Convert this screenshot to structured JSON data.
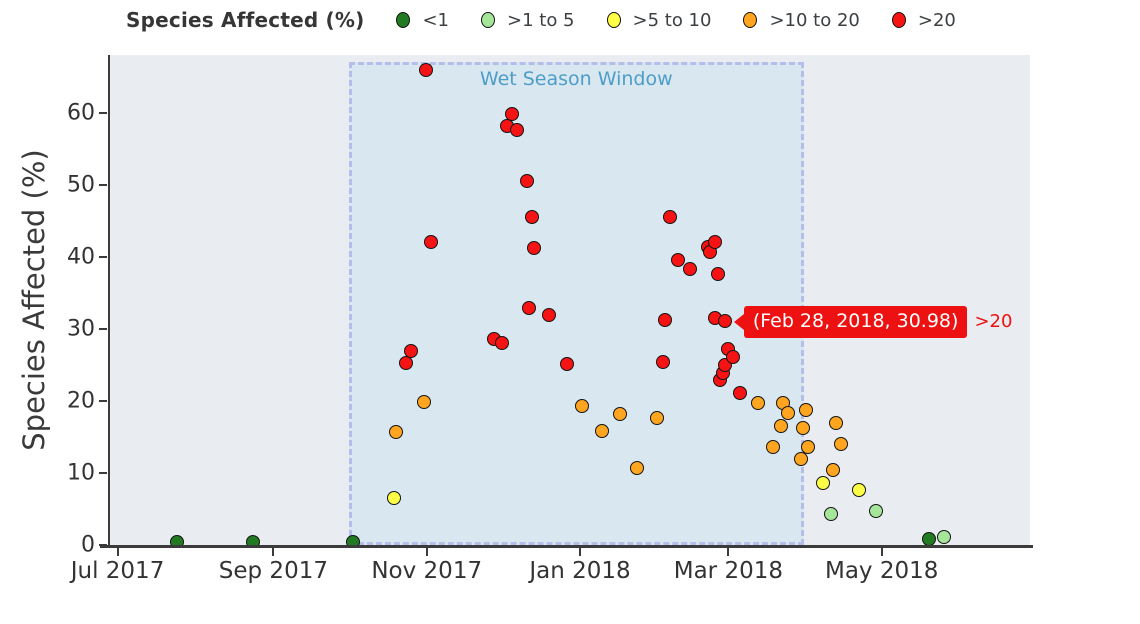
{
  "legend": {
    "title": "Species Affected (%)",
    "items": [
      {
        "key": "lt1",
        "label": "<1",
        "color": "#227a22"
      },
      {
        "key": "1to5",
        "label": ">1 to 5",
        "color": "#a6e69b"
      },
      {
        "key": "5to10",
        "label": ">5 to 10",
        "color": "#ffff45"
      },
      {
        "key": "10to20",
        "label": ">10 to 20",
        "color": "#ffa51f"
      },
      {
        "key": "gt20",
        "label": ">20",
        "color": "#f51313"
      }
    ]
  },
  "colors": {
    "plot_background": "#e9edf2",
    "wet_window_background": "#d9e7f1",
    "wet_window_border": "#b5bdea",
    "wet_window_label": "#4d9ec6",
    "axis": "#3b3b3b",
    "tooltip_background": "#ee1111",
    "tooltip_text": "#ffffff"
  },
  "chart_data": {
    "type": "scatter",
    "title": "",
    "xlabel": "",
    "ylabel": "Species Affected (%)",
    "ylim": [
      0,
      68
    ],
    "grid": false,
    "legend_position": "top",
    "x_domain": [
      "2017-06-28",
      "2018-06-29"
    ],
    "y_ticks": [
      0,
      10,
      20,
      30,
      40,
      50,
      60
    ],
    "x_ticks": [
      {
        "date": "2017-07-01",
        "label": "Jul 2017"
      },
      {
        "date": "2017-09-01",
        "label": "Sep 2017"
      },
      {
        "date": "2017-11-01",
        "label": "Nov 2017"
      },
      {
        "date": "2018-01-01",
        "label": "Jan 2018"
      },
      {
        "date": "2018-03-01",
        "label": "Mar 2018"
      },
      {
        "date": "2018-05-01",
        "label": "May 2018"
      }
    ],
    "annotation_region": {
      "label": "Wet Season Window",
      "start": "2017-10-01",
      "end": "2018-03-31"
    },
    "tooltip": {
      "text": "(Feb 28, 2018, 30.98)",
      "suffix": ">20",
      "point": {
        "date": "2018-02-28",
        "value": 30.98
      }
    },
    "series": [
      {
        "name": "<1",
        "key": "lt1",
        "color": "#227a22",
        "points": [
          {
            "date": "2017-07-25",
            "value": 0.3
          },
          {
            "date": "2017-08-24",
            "value": 0.3
          },
          {
            "date": "2017-10-03",
            "value": 0.3
          },
          {
            "date": "2018-05-20",
            "value": 0.8
          }
        ]
      },
      {
        "name": ">1 to 5",
        "key": "1to5",
        "color": "#a6e69b",
        "points": [
          {
            "date": "2018-04-11",
            "value": 4.3
          },
          {
            "date": "2018-04-29",
            "value": 4.6
          },
          {
            "date": "2018-05-26",
            "value": 1.1
          }
        ]
      },
      {
        "name": ">5 to 10",
        "key": "5to10",
        "color": "#ffff45",
        "points": [
          {
            "date": "2017-10-19",
            "value": 6.5
          },
          {
            "date": "2018-04-08",
            "value": 8.5
          },
          {
            "date": "2018-04-22",
            "value": 7.5
          }
        ]
      },
      {
        "name": ">10 to 20",
        "key": "10to20",
        "color": "#ffa51f",
        "points": [
          {
            "date": "2017-10-20",
            "value": 15.6
          },
          {
            "date": "2017-10-31",
            "value": 19.8
          },
          {
            "date": "2018-01-02",
            "value": 19.2
          },
          {
            "date": "2018-01-10",
            "value": 15.7
          },
          {
            "date": "2018-01-17",
            "value": 18.1
          },
          {
            "date": "2018-01-24",
            "value": 10.6
          },
          {
            "date": "2018-02-01",
            "value": 17.5
          },
          {
            "date": "2018-03-13",
            "value": 19.6
          },
          {
            "date": "2018-03-19",
            "value": 13.5
          },
          {
            "date": "2018-03-22",
            "value": 16.5
          },
          {
            "date": "2018-03-23",
            "value": 19.6
          },
          {
            "date": "2018-03-25",
            "value": 18.2
          },
          {
            "date": "2018-03-30",
            "value": 11.8
          },
          {
            "date": "2018-03-31",
            "value": 16.2
          },
          {
            "date": "2018-04-01",
            "value": 18.6
          },
          {
            "date": "2018-04-02",
            "value": 13.5
          },
          {
            "date": "2018-04-12",
            "value": 10.3
          },
          {
            "date": "2018-04-13",
            "value": 16.8
          },
          {
            "date": "2018-04-15",
            "value": 14.0
          }
        ]
      },
      {
        "name": ">20",
        "key": "gt20",
        "color": "#f51313",
        "points": [
          {
            "date": "2017-10-24",
            "value": 25.2
          },
          {
            "date": "2017-10-26",
            "value": 26.9
          },
          {
            "date": "2017-11-01",
            "value": 65.9
          },
          {
            "date": "2017-11-03",
            "value": 42.0
          },
          {
            "date": "2017-11-28",
            "value": 28.5
          },
          {
            "date": "2017-12-01",
            "value": 28.0
          },
          {
            "date": "2017-12-03",
            "value": 58.1
          },
          {
            "date": "2017-12-05",
            "value": 59.8
          },
          {
            "date": "2017-12-07",
            "value": 57.5
          },
          {
            "date": "2017-12-11",
            "value": 50.4
          },
          {
            "date": "2017-12-12",
            "value": 32.8
          },
          {
            "date": "2017-12-13",
            "value": 45.5
          },
          {
            "date": "2017-12-14",
            "value": 41.2
          },
          {
            "date": "2017-12-20",
            "value": 31.9
          },
          {
            "date": "2017-12-27",
            "value": 25.0
          },
          {
            "date": "2018-02-03",
            "value": 25.3
          },
          {
            "date": "2018-02-04",
            "value": 31.2
          },
          {
            "date": "2018-02-06",
            "value": 45.5
          },
          {
            "date": "2018-02-09",
            "value": 39.5
          },
          {
            "date": "2018-02-14",
            "value": 38.3
          },
          {
            "date": "2018-02-21",
            "value": 41.3
          },
          {
            "date": "2018-02-22",
            "value": 40.6
          },
          {
            "date": "2018-02-24",
            "value": 42.0
          },
          {
            "date": "2018-02-24",
            "value": 31.4
          },
          {
            "date": "2018-02-25",
            "value": 37.5
          },
          {
            "date": "2018-02-26",
            "value": 22.8
          },
          {
            "date": "2018-02-27",
            "value": 23.8
          },
          {
            "date": "2018-02-28",
            "value": 24.9
          },
          {
            "date": "2018-02-28",
            "value": 30.98
          },
          {
            "date": "2018-03-01",
            "value": 27.2
          },
          {
            "date": "2018-03-03",
            "value": 26.0
          },
          {
            "date": "2018-03-06",
            "value": 21.0
          }
        ]
      }
    ]
  }
}
